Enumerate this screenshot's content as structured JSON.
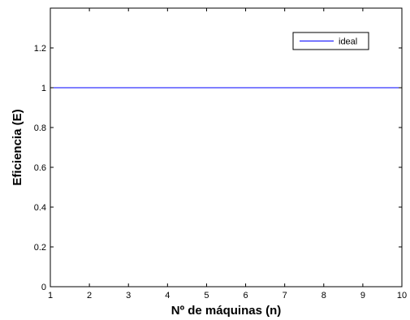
{
  "chart_data": {
    "type": "line",
    "title": "",
    "xlabel": "Nº de máquinas (n)",
    "ylabel": "Eficiencia (E)",
    "xlim": [
      1,
      10
    ],
    "ylim": [
      0,
      1.4
    ],
    "xticks": [
      1,
      2,
      3,
      4,
      5,
      6,
      7,
      8,
      9,
      10
    ],
    "xtick_labels": [
      "1",
      "2",
      "3",
      "4",
      "5",
      "6",
      "7",
      "8",
      "9",
      "10"
    ],
    "yticks": [
      0,
      0.2,
      0.4,
      0.6,
      0.8,
      1,
      1.2
    ],
    "ytick_labels": [
      "0",
      "0.2",
      "0.4",
      "0.6",
      "0.8",
      "1",
      "1.2"
    ],
    "grid": false,
    "legend_position": "top-right",
    "series": [
      {
        "name": "ideal",
        "color": "#0000ff",
        "x": [
          1,
          2,
          3,
          4,
          5,
          6,
          7,
          8,
          9,
          10
        ],
        "y": [
          1,
          1,
          1,
          1,
          1,
          1,
          1,
          1,
          1,
          1
        ]
      }
    ]
  }
}
